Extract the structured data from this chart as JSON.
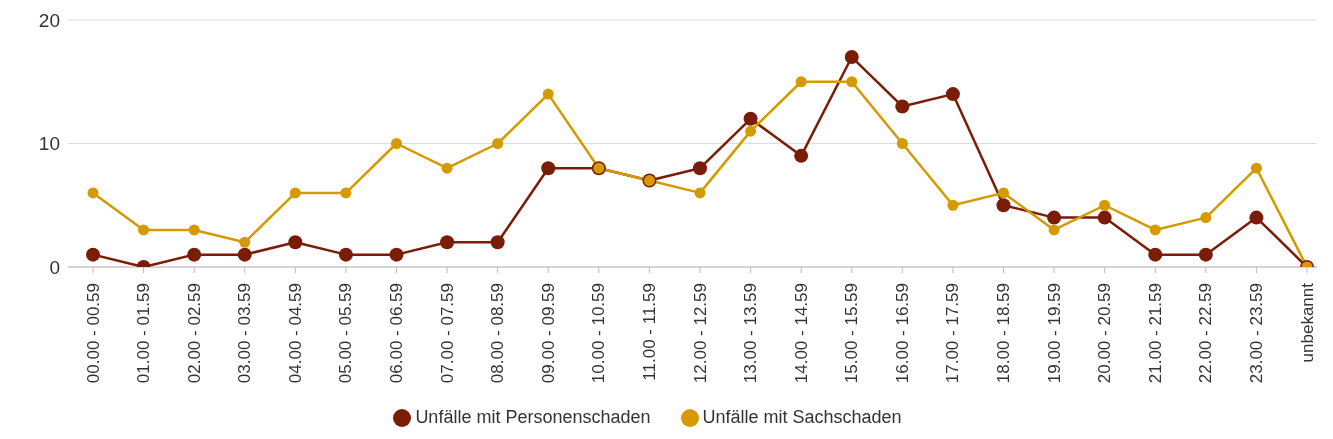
{
  "chart_data": {
    "type": "line",
    "categories": [
      "00.00 - 00.59",
      "01.00 - 01.59",
      "02.00 - 02.59",
      "03.00 - 03.59",
      "04.00 - 04.59",
      "05.00 - 05.59",
      "06.00 - 06.59",
      "07.00 - 07.59",
      "08.00 - 08.59",
      "09.00 - 09.59",
      "10.00 - 10.59",
      "11.00 - 11.59",
      "12.00 - 12.59",
      "13.00 - 13.59",
      "14.00 - 14.59",
      "15.00 - 15.59",
      "16.00 - 16.59",
      "17.00 - 17.59",
      "18.00 - 18.59",
      "19.00 - 19.59",
      "20.00 - 20.59",
      "21.00 - 21.59",
      "22.00 - 22.59",
      "23.00 - 23.59",
      "unbekannt"
    ],
    "series": [
      {
        "name": "Unfälle mit Personenschaden",
        "color": "#7b1c07",
        "values": [
          1,
          0,
          1,
          1,
          2,
          1,
          1,
          2,
          2,
          8,
          8,
          7,
          8,
          12,
          9,
          17,
          13,
          14,
          5,
          4,
          4,
          1,
          1,
          4,
          0
        ]
      },
      {
        "name": "Unfälle mit Sachschaden",
        "color": "#d49a00",
        "values": [
          6,
          3,
          3,
          2,
          6,
          6,
          10,
          8,
          10,
          14,
          8,
          7,
          6,
          11,
          15,
          15,
          10,
          5,
          6,
          3,
          5,
          3,
          4,
          8,
          0
        ]
      }
    ],
    "ylim": [
      0,
      20
    ],
    "yticks": [
      0,
      10,
      20
    ],
    "grid": "y",
    "legend": "bottom",
    "marker": "circle",
    "line_style": "solid"
  }
}
